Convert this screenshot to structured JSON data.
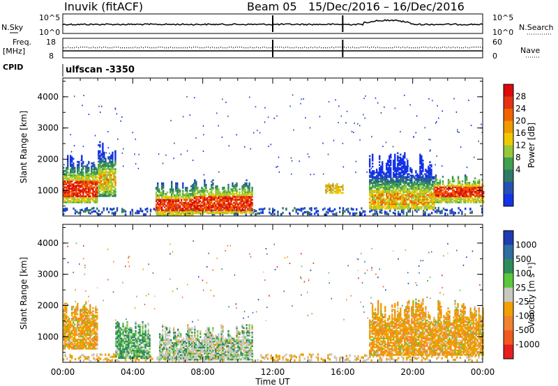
{
  "header": {
    "title": "Inuvik (fitACF)",
    "beam": "Beam 05",
    "date_range": "15/Dec/2016 – 16/Dec/2016"
  },
  "sky_panel": {
    "left_label": "N.Sky",
    "left_ticks": [
      "10^5",
      "10^0"
    ],
    "right_label": "N.Search",
    "right_ticks": [
      "10^5",
      "10^0"
    ]
  },
  "freq_panel": {
    "left_label_line1": "Freq.",
    "left_label_line2": "[MHz]",
    "left_ticks": [
      "18",
      "8"
    ],
    "right_label": "Nave",
    "right_ticks": [
      "60",
      "0"
    ]
  },
  "cpid_panel": {
    "label": "CPID",
    "text": "ulfscan -3350"
  },
  "chart_data": [
    {
      "type": "heatmap",
      "name": "power",
      "ylabel": "Slant Range [km]",
      "ylim": [
        180,
        4600
      ],
      "yticks": [
        1000,
        2000,
        3000,
        4000
      ],
      "xlim_hours": [
        0,
        24
      ],
      "colorbar": {
        "label": "Power [dB]",
        "ticks": [
          4,
          8,
          12,
          16,
          20,
          24,
          28
        ],
        "colors": [
          "#1432e6",
          "#2650b4",
          "#2e7a64",
          "#40a050",
          "#96c83c",
          "#f0c800",
          "#f09a00",
          "#f06400",
          "#e63214",
          "#dc0a0a"
        ]
      },
      "scatter_regions": [
        {
          "t0": 0.0,
          "t1": 2.0,
          "r0": 600,
          "r1": 2150,
          "core0": 750,
          "core1": 1300,
          "core_level": "high"
        },
        {
          "t0": 2.0,
          "t1": 3.0,
          "r0": 800,
          "r1": 2600,
          "core0": 1100,
          "core1": 1500,
          "core_level": "mid"
        },
        {
          "t0": 5.3,
          "t1": 7.5,
          "r0": 200,
          "r1": 1300,
          "core0": 300,
          "core1": 700,
          "core_level": "high"
        },
        {
          "t0": 7.5,
          "t1": 10.8,
          "r0": 250,
          "r1": 1350,
          "core0": 300,
          "core1": 800,
          "core_level": "high"
        },
        {
          "t0": 15.0,
          "t1": 16.0,
          "r0": 900,
          "r1": 1250,
          "core0": 950,
          "core1": 1150,
          "core_level": "mid"
        },
        {
          "t0": 17.5,
          "t1": 21.2,
          "r0": 400,
          "r1": 2200,
          "core0": 500,
          "core1": 900,
          "core_level": "mid"
        },
        {
          "t0": 21.2,
          "t1": 24.0,
          "r0": 600,
          "r1": 1500,
          "core0": 750,
          "core1": 1100,
          "core_level": "high"
        }
      ]
    },
    {
      "type": "heatmap",
      "name": "velocity",
      "ylabel": "Slant Range [km]",
      "xlabel": "Time UT",
      "ylim": [
        180,
        4600
      ],
      "yticks": [
        1000,
        2000,
        3000,
        4000
      ],
      "xlim_hours": [
        0,
        24
      ],
      "xticks": [
        "00:00",
        "04:00",
        "08:00",
        "12:00",
        "16:00",
        "20:00",
        "00:00"
      ],
      "colorbar": {
        "label": "Velocity [m s^-1]",
        "ticks": [
          1000,
          500,
          100,
          25,
          -25,
          -100,
          -500,
          -1000
        ],
        "colors": [
          "#1e3cb4",
          "#2e6ea0",
          "#2e8c5a",
          "#5ac83c",
          "#c8c8c0",
          "#f0a000",
          "#f08232",
          "#f05a1e",
          "#e61e1e"
        ]
      },
      "scatter_regions": [
        {
          "t0": 0.0,
          "t1": 2.0,
          "r0": 600,
          "r1": 2100,
          "dominant": "negative"
        },
        {
          "t0": 3.0,
          "t1": 5.0,
          "r0": 300,
          "r1": 1500,
          "dominant": "positive"
        },
        {
          "t0": 5.5,
          "t1": 10.8,
          "r0": 250,
          "r1": 1400,
          "dominant": "ground"
        },
        {
          "t0": 17.5,
          "t1": 24.0,
          "r0": 400,
          "r1": 2200,
          "dominant": "negative"
        }
      ]
    }
  ]
}
